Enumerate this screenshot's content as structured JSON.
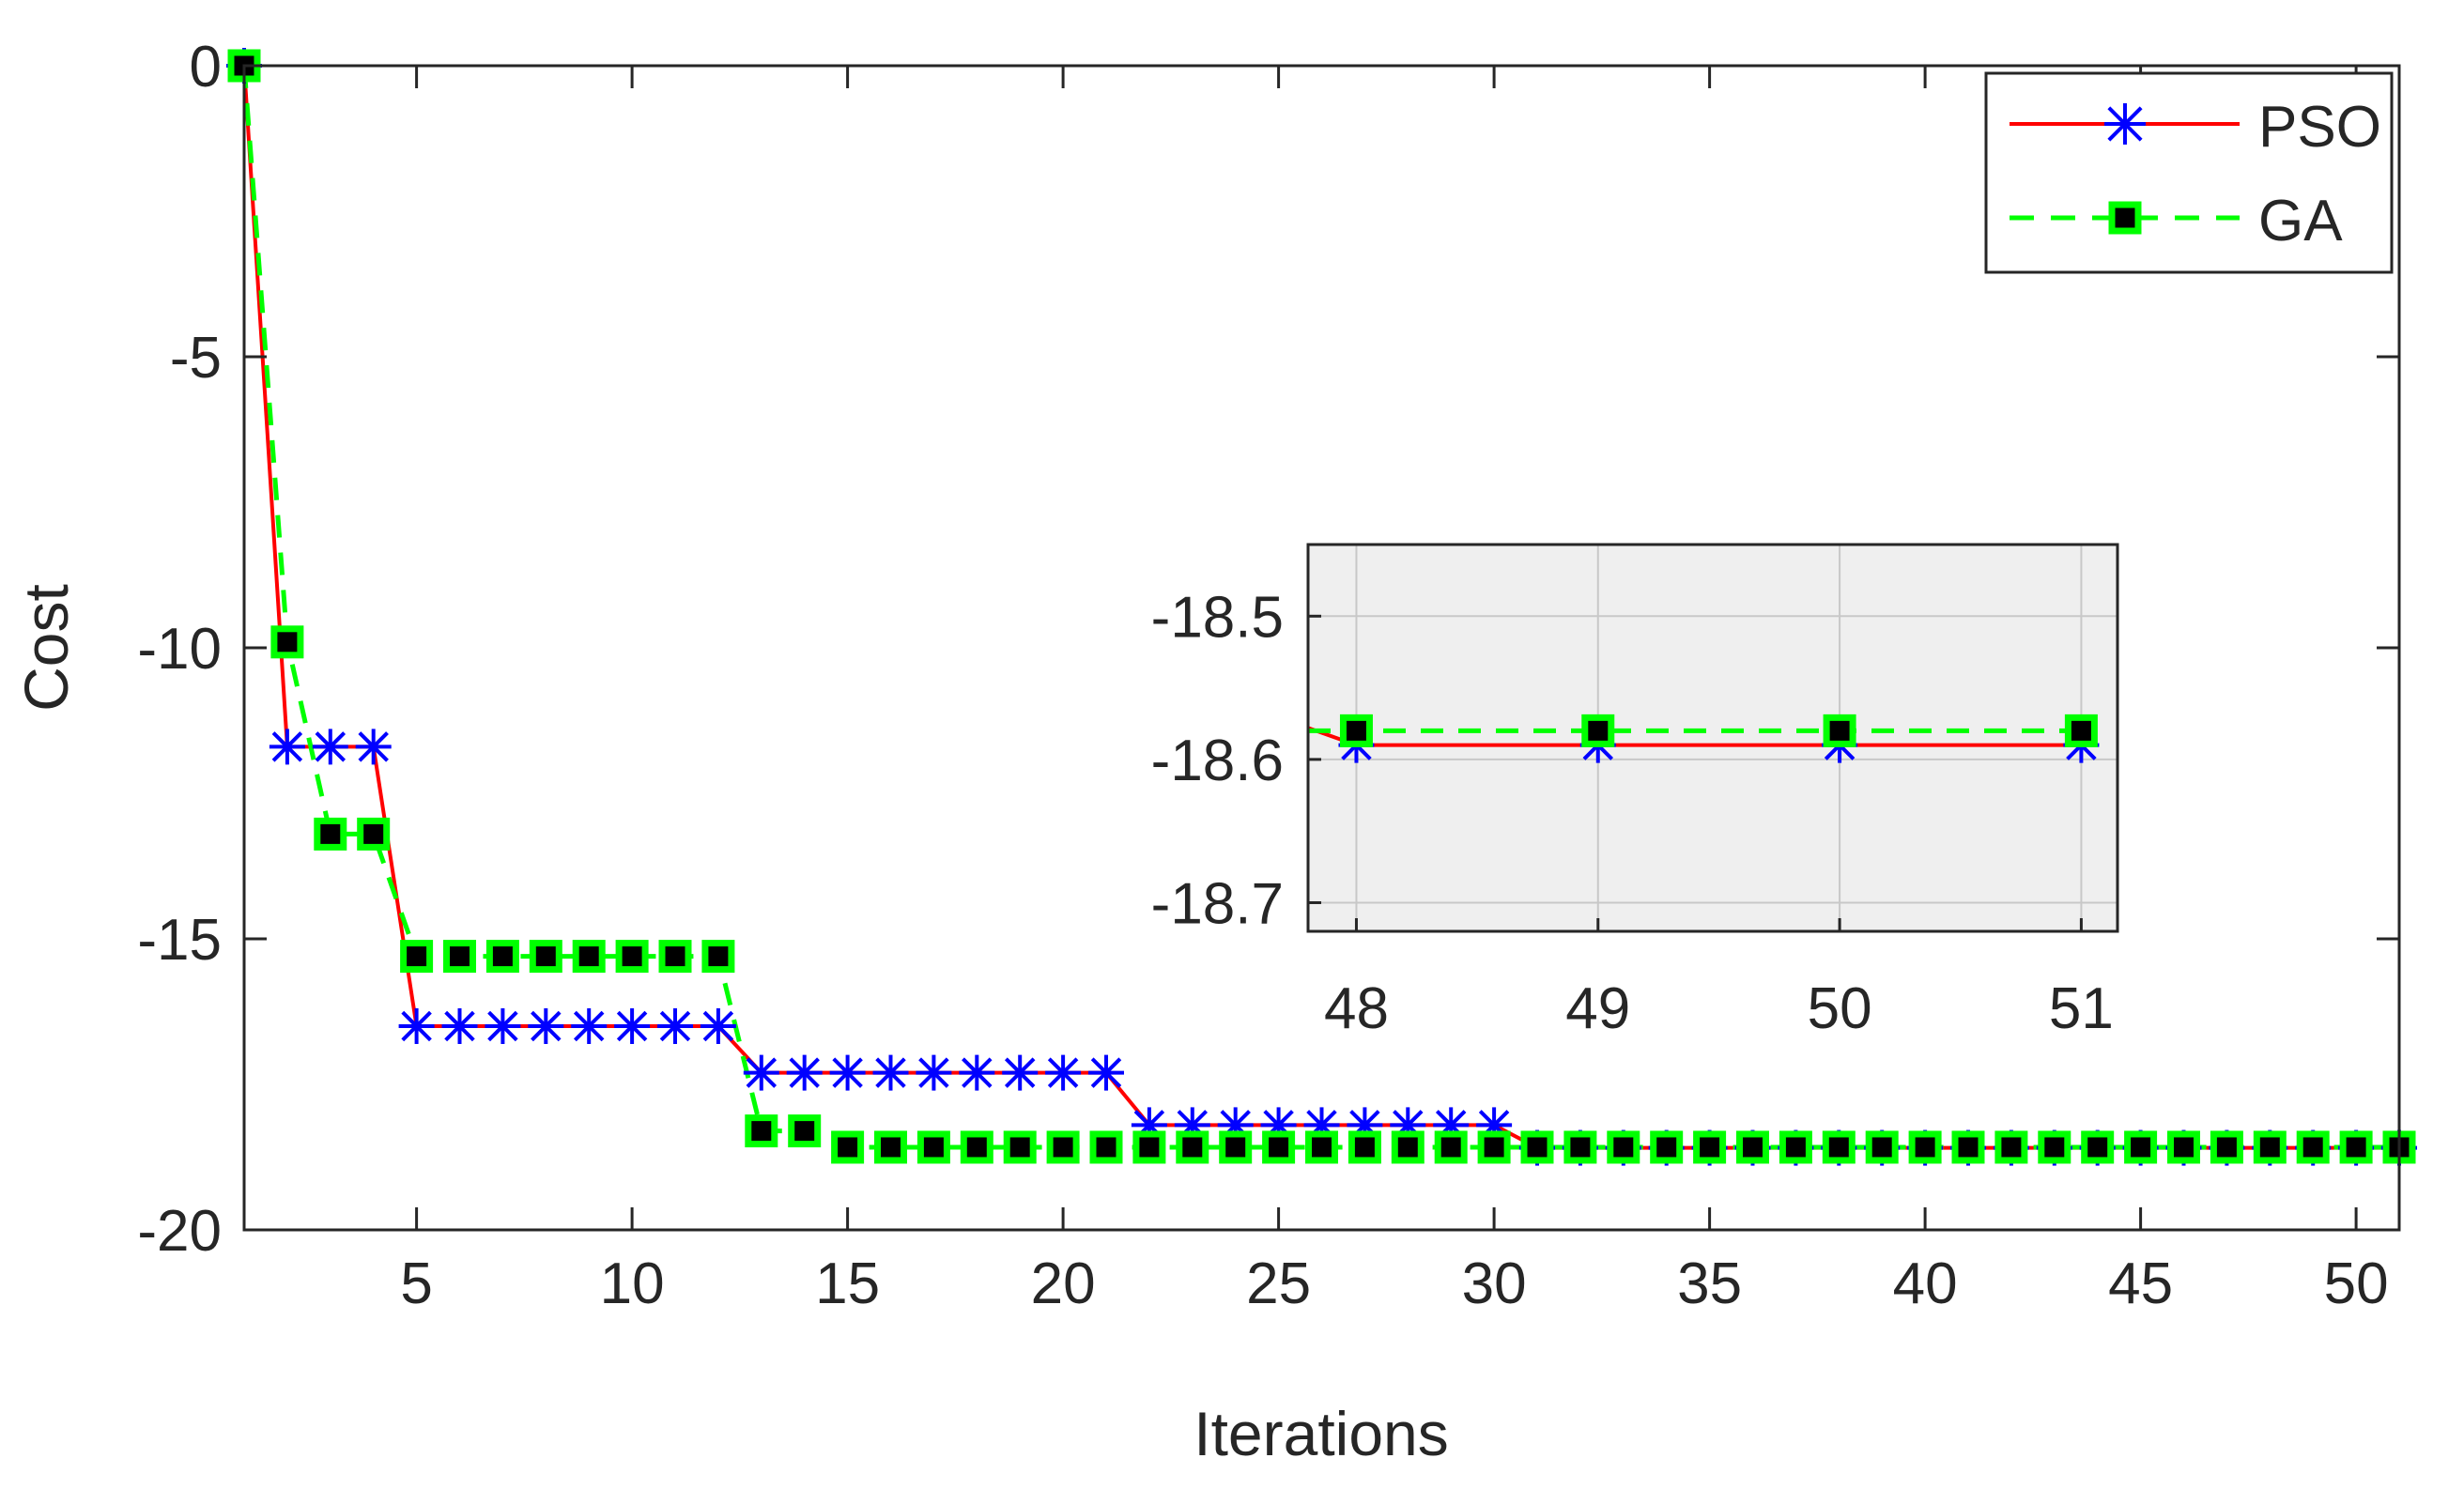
{
  "chart_data": [
    {
      "type": "line",
      "xlabel": "Iterations",
      "ylabel": "Cost",
      "xlim": [
        1,
        51
      ],
      "ylim": [
        -20,
        0
      ],
      "x_ticks": [
        5,
        10,
        15,
        20,
        25,
        30,
        35,
        40,
        45,
        50
      ],
      "y_ticks": [
        0,
        -5,
        -10,
        -15,
        -20
      ],
      "legend": {
        "position": "top-right"
      },
      "series": [
        {
          "name": "PSO",
          "color": "#ff0000",
          "marker": "asterisk",
          "marker_color": "#0000ff",
          "line_style": "solid",
          "x": [
            1,
            2,
            3,
            4,
            5,
            6,
            7,
            8,
            9,
            10,
            11,
            12,
            13,
            14,
            15,
            16,
            17,
            18,
            19,
            20,
            21,
            22,
            23,
            24,
            25,
            26,
            27,
            28,
            29,
            30,
            31,
            32,
            33,
            34,
            35,
            36,
            37,
            38,
            39,
            40,
            41,
            42,
            43,
            44,
            45,
            46,
            47,
            48,
            49,
            50,
            51
          ],
          "values": [
            0,
            -11.7,
            -11.7,
            -11.7,
            -16.5,
            -16.5,
            -16.5,
            -16.5,
            -16.5,
            -16.5,
            -16.5,
            -16.5,
            -17.3,
            -17.3,
            -17.3,
            -17.3,
            -17.3,
            -17.3,
            -17.3,
            -17.3,
            -17.3,
            -18.2,
            -18.2,
            -18.2,
            -18.2,
            -18.2,
            -18.2,
            -18.2,
            -18.2,
            -18.2,
            -18.59,
            -18.59,
            -18.59,
            -18.59,
            -18.59,
            -18.59,
            -18.59,
            -18.59,
            -18.59,
            -18.59,
            -18.59,
            -18.59,
            -18.59,
            -18.59,
            -18.59,
            -18.59,
            -18.59,
            -18.59,
            -18.59,
            -18.59,
            -18.59
          ]
        },
        {
          "name": "GA",
          "color": "#00ff00",
          "marker": "square",
          "marker_color": "#000000",
          "line_style": "dashed",
          "x": [
            1,
            2,
            3,
            4,
            5,
            6,
            7,
            8,
            9,
            10,
            11,
            12,
            13,
            14,
            15,
            16,
            17,
            18,
            19,
            20,
            21,
            22,
            23,
            24,
            25,
            26,
            27,
            28,
            29,
            30,
            31,
            32,
            33,
            34,
            35,
            36,
            37,
            38,
            39,
            40,
            41,
            42,
            43,
            44,
            45,
            46,
            47,
            48,
            49,
            50,
            51
          ],
          "values": [
            0,
            -9.9,
            -13.2,
            -13.2,
            -15.3,
            -15.3,
            -15.3,
            -15.3,
            -15.3,
            -15.3,
            -15.3,
            -15.3,
            -18.3,
            -18.3,
            -18.58,
            -18.58,
            -18.58,
            -18.58,
            -18.58,
            -18.58,
            -18.58,
            -18.58,
            -18.58,
            -18.58,
            -18.58,
            -18.58,
            -18.58,
            -18.58,
            -18.58,
            -18.58,
            -18.58,
            -18.58,
            -18.58,
            -18.58,
            -18.58,
            -18.58,
            -18.58,
            -18.58,
            -18.58,
            -18.58,
            -18.58,
            -18.58,
            -18.58,
            -18.58,
            -18.58,
            -18.58,
            -18.58,
            -18.58,
            -18.58,
            -18.58,
            -18.58
          ]
        }
      ]
    },
    {
      "type": "line",
      "xlim": [
        47.8,
        51.15
      ],
      "ylim": [
        -18.72,
        -18.45
      ],
      "x_ticks": [
        48,
        49,
        50,
        51
      ],
      "x_tick_labels": [
        "48",
        "49",
        "50",
        "51"
      ],
      "y_ticks": [
        -18.5,
        -18.6,
        -18.7
      ],
      "y_tick_labels": [
        "-18.5",
        "-18.6",
        "-18.7"
      ],
      "grid": true,
      "background": "#efefef",
      "series": [
        {
          "name": "PSO",
          "x": [
            48,
            49,
            50,
            51
          ],
          "values": [
            -18.59,
            -18.59,
            -18.59,
            -18.59
          ]
        },
        {
          "name": "GA",
          "x": [
            48,
            49,
            50,
            51
          ],
          "values": [
            -18.58,
            -18.58,
            -18.58,
            -18.58
          ]
        }
      ]
    }
  ]
}
